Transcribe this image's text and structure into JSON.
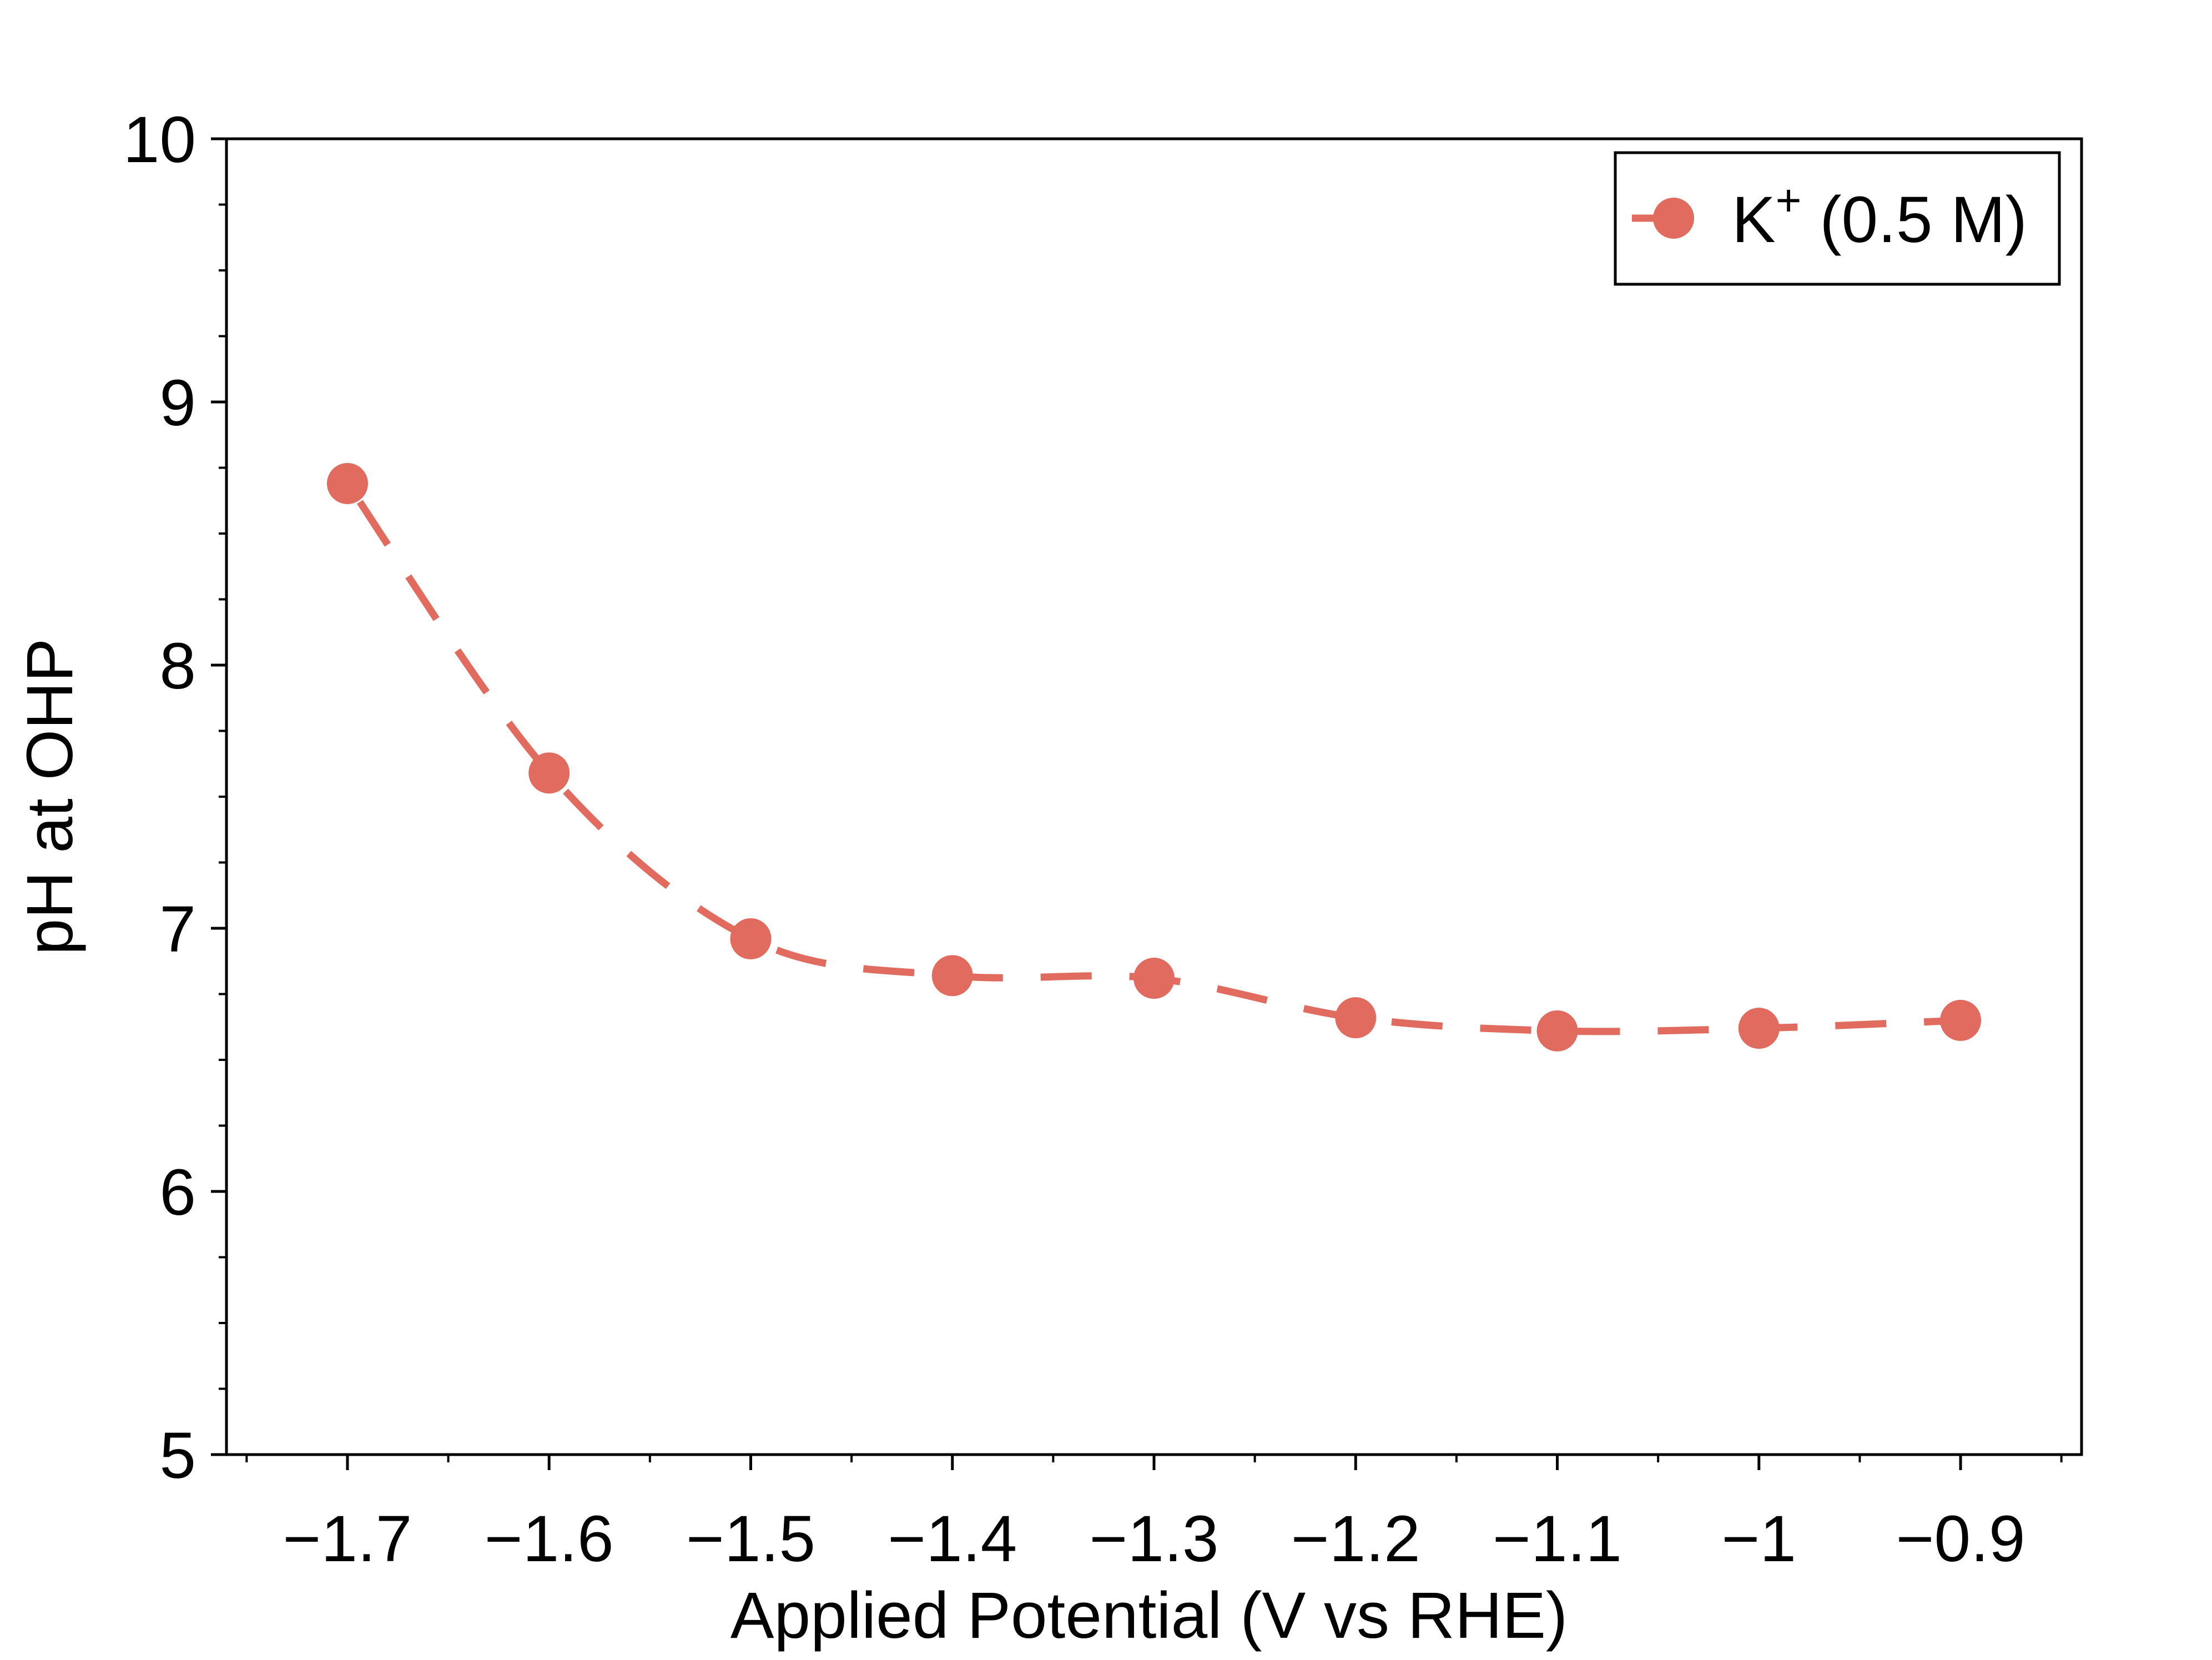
{
  "chart_data": {
    "type": "line",
    "title": "",
    "xlabel": "Applied Potential (V vs RHE)",
    "ylabel": "pH at OHP",
    "xlim": [
      -1.76,
      -0.84
    ],
    "ylim": [
      5,
      10
    ],
    "x_ticks": [
      -1.7,
      -1.6,
      -1.5,
      -1.4,
      -1.3,
      -1.2,
      -1.1,
      -1.0,
      -0.9
    ],
    "x_tick_labels": [
      "−1.7",
      "−1.6",
      "−1.5",
      "−1.4",
      "−1.3",
      "−1.2",
      "−1.1",
      "−1",
      "−0.9"
    ],
    "x_minor_step": 0.05,
    "y_ticks": [
      5,
      6,
      7,
      8,
      9,
      10
    ],
    "y_tick_labels": [
      "5",
      "6",
      "7",
      "8",
      "9",
      "10"
    ],
    "y_minor_step": 0.25,
    "grid": false,
    "legend_position": "top-right",
    "legend": {
      "base": "K",
      "superscript": "+",
      "suffix": " (0.5 M)"
    },
    "series": [
      {
        "name": "K+ (0.5 M)",
        "color": "#E06B5E",
        "line_style": "dashed",
        "marker": "circle",
        "x": [
          -1.7,
          -1.6,
          -1.5,
          -1.4,
          -1.3,
          -1.2,
          -1.1,
          -1.0,
          -0.9
        ],
        "y": [
          8.69,
          7.59,
          6.96,
          6.82,
          6.81,
          6.66,
          6.61,
          6.62,
          6.65
        ]
      }
    ]
  }
}
